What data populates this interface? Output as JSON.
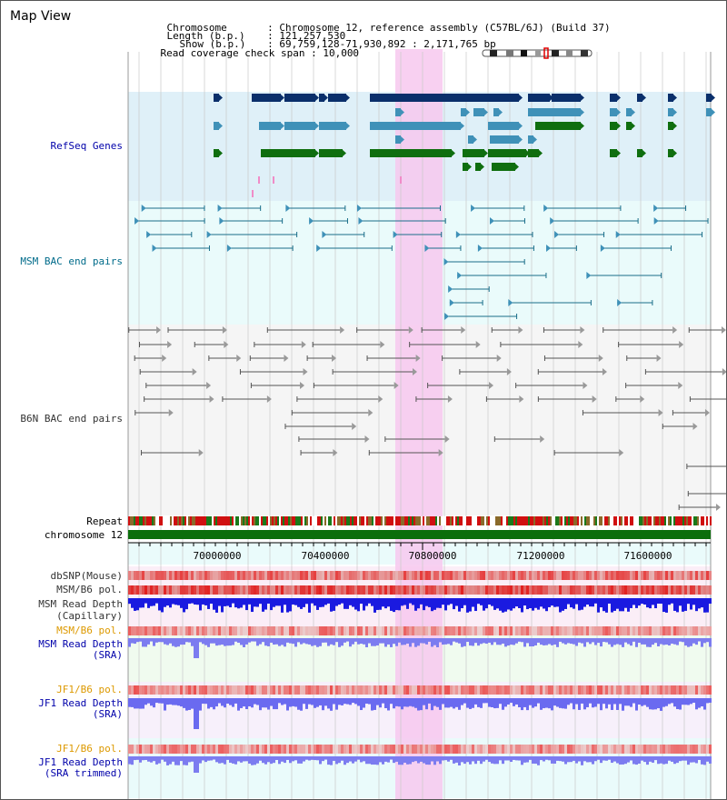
{
  "header": {
    "title": "Map View",
    "chromosome_label": "Chromosome",
    "chromosome_value": ": Chromosome 12, reference assembly (C57BL/6J) (Build 37)",
    "length_label": "Length (b.p.)",
    "length_value": ": 121,257,530",
    "show_label": "Show (b.p.)",
    "show_value": ": 69,759,128-71,930,892 : 2,171,765 bp",
    "coverage_label": "Read coverage check span",
    "coverage_value": ": 10,000"
  },
  "tracks": {
    "refseq": "RefSeq Genes",
    "msm_bac": "MSM BAC end pairs",
    "b6n_bac": "B6N BAC end pairs",
    "repeat": "Repeat",
    "chromosome": "chromosome 12",
    "dbsnp": "dbSNP(Mouse)",
    "msm_b6_pol_1": "MSM/B6 pol.",
    "msm_depth_cap_1": "MSM Read Depth",
    "msm_depth_cap_2": "(Capillary)",
    "msm_b6_pol_2": "MSM/B6 pol.",
    "msm_depth_sra_1": "MSM Read Depth",
    "msm_depth_sra_2": "(SRA)",
    "jf1_b6_pol_1": "JF1/B6 pol.",
    "jf1_depth_sra_1": "JF1 Read Depth",
    "jf1_depth_sra_2": "(SRA)",
    "jf1_b6_pol_2": "JF1/B6 pol.",
    "jf1_depth_trim_1": "JF1 Read Depth",
    "jf1_depth_trim_2": "(SRA trimmed)"
  },
  "axis": {
    "ticks": [
      "70000000",
      "70400000",
      "70800000",
      "71200000",
      "71600000"
    ]
  },
  "colors": {
    "label_blue": "#0000aa",
    "label_teal": "#006b8a",
    "label_orange": "#dd9900",
    "refseq_dark": "#0a2f6b",
    "refseq_mid": "#3f91b8",
    "refseq_green": "#0f6e0f",
    "highlight": "#f7c8ee",
    "chromosome_bar": "#0b6e0b"
  },
  "icons": [
    "chromosome-ideogram-icon",
    "gene-arrow-icon",
    "bac-end-arrow-icon"
  ]
}
